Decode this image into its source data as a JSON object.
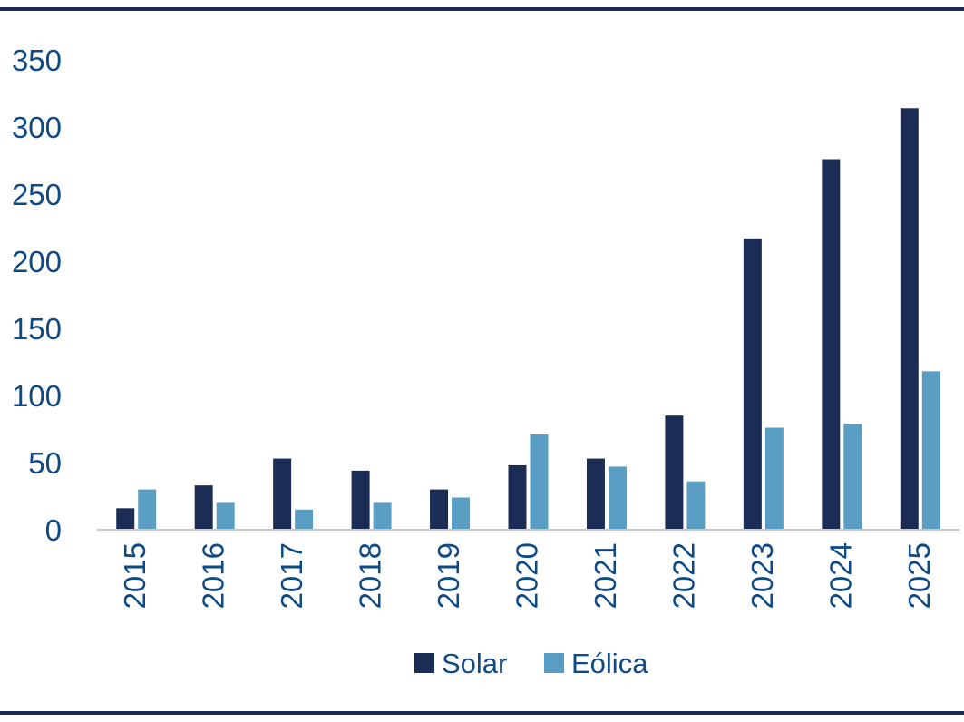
{
  "chart_data": {
    "type": "bar",
    "title": "",
    "xlabel": "",
    "ylabel": "",
    "categories": [
      "2015",
      "2016",
      "2017",
      "2018",
      "2019",
      "2020",
      "2021",
      "2022",
      "2023",
      "2024",
      "2025"
    ],
    "series": [
      {
        "name": "Solar",
        "color": "#1b2d55",
        "values": [
          16,
          33,
          53,
          44,
          30,
          48,
          53,
          85,
          217,
          276,
          314
        ]
      },
      {
        "name": "Eólica",
        "color": "#5b9ec4",
        "values": [
          30,
          20,
          15,
          20,
          24,
          71,
          47,
          36,
          76,
          79,
          118
        ]
      }
    ],
    "ylim": [
      0,
      350
    ],
    "yticks": [
      "0",
      "50",
      "100",
      "150",
      "200",
      "250",
      "300",
      "350"
    ],
    "grid": false,
    "legend_position": "bottom",
    "frame_color": "#1b2d55",
    "axis_color": "#c8c8c8",
    "text_color": "#0d4a86"
  }
}
